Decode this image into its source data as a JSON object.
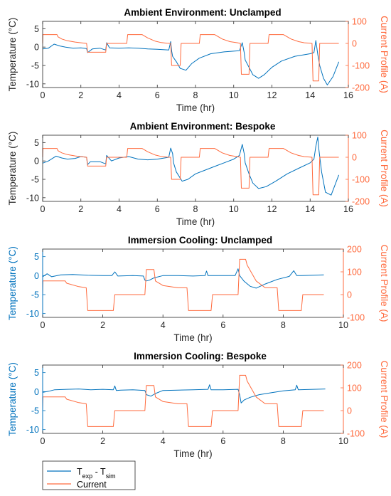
{
  "colors": {
    "temp": "#0072BD",
    "current": "#FF6A3D",
    "axis": "#262626",
    "box": "#262626"
  },
  "legend": {
    "entries": [
      {
        "label": "T_exp - T_sim",
        "color": "#0072BD"
      },
      {
        "label": "Current",
        "color": "#FF6A3D"
      }
    ]
  },
  "chart_data": [
    {
      "type": "line",
      "title": "Ambient Environment: Unclamped",
      "xlabel": "Time (hr)",
      "ylabel": "Temperature (°C)",
      "y2label": "Current Profile (A)",
      "xlim": [
        0,
        16
      ],
      "ylim": [
        -11,
        7
      ],
      "y2lim": [
        -200,
        100
      ],
      "xticks": [
        0,
        2,
        4,
        6,
        8,
        10,
        12,
        14,
        16
      ],
      "yticks": [
        -10,
        -5,
        0,
        5
      ],
      "y2ticks": [
        -200,
        -100,
        0,
        100
      ],
      "series": [
        {
          "axis": "left",
          "color": "#0072BD",
          "x": [
            0,
            0.3,
            0.6,
            0.9,
            1.2,
            1.6,
            2.0,
            2.3,
            2.35,
            2.6,
            3.0,
            3.3,
            3.35,
            3.5,
            4.0,
            4.5,
            5.0,
            5.5,
            6.0,
            6.6,
            6.7,
            6.75,
            6.8,
            7.0,
            7.2,
            7.5,
            7.8,
            8.2,
            8.8,
            9.5,
            10.3,
            10.45,
            10.55,
            10.6,
            10.8,
            11.0,
            11.3,
            11.6,
            12.0,
            12.5,
            13.2,
            14.0,
            14.2,
            14.3,
            14.4,
            14.5,
            14.7,
            14.9,
            15.2,
            15.5
          ],
          "y": [
            -0.5,
            -0.3,
            0.8,
            0.3,
            0,
            -0.3,
            -0.2,
            -0.4,
            -1.5,
            -0.5,
            -0.3,
            -0.8,
            1.2,
            -0.2,
            -0.3,
            -0.2,
            -0.3,
            -0.5,
            -0.6,
            -0.8,
            1.5,
            -1.0,
            -2.5,
            -4.0,
            -5.8,
            -6.3,
            -4.5,
            -3.0,
            -1.8,
            -1.3,
            -1.0,
            1.2,
            -1.5,
            -3.5,
            -5.5,
            -7.5,
            -8.5,
            -7.5,
            -5.5,
            -3.8,
            -2.5,
            -1.8,
            -1.5,
            1.8,
            -2.0,
            -5.0,
            -8.5,
            -10.3,
            -8.0,
            -4.0
          ]
        },
        {
          "axis": "right",
          "color": "#FF6A3D",
          "x": [
            0,
            0.01,
            0.75,
            0.8,
            1.0,
            1.3,
            1.7,
            2.0,
            2.3,
            2.35,
            3.3,
            3.35,
            3.6,
            4.4,
            4.45,
            5.2,
            5.5,
            5.9,
            6.2,
            6.5,
            6.7,
            6.75,
            7.2,
            7.25,
            7.5,
            8.2,
            8.25,
            9.0,
            9.4,
            9.8,
            10.2,
            10.35,
            10.4,
            10.8,
            10.85,
            11.2,
            11.8,
            11.85,
            12.6,
            13.0,
            13.4,
            13.7,
            14.0,
            14.1,
            14.15,
            14.45,
            14.5,
            15.5
          ],
          "y": [
            0,
            40,
            40,
            30,
            20,
            12,
            6,
            3,
            0,
            -40,
            -40,
            0,
            0,
            0,
            40,
            40,
            25,
            10,
            4,
            1,
            0,
            -100,
            -100,
            0,
            0,
            0,
            40,
            40,
            20,
            8,
            3,
            0,
            -140,
            -140,
            0,
            0,
            0,
            40,
            40,
            20,
            8,
            3,
            1,
            0,
            -170,
            -170,
            0,
            0
          ]
        }
      ]
    },
    {
      "type": "line",
      "title": "Ambient Environment: Bespoke",
      "xlabel": "Time (hr)",
      "ylabel": "Temperature (°C)",
      "y2label": "Current Profile (A)",
      "xlim": [
        0,
        16
      ],
      "ylim": [
        -11,
        7
      ],
      "y2lim": [
        -200,
        100
      ],
      "xticks": [
        0,
        2,
        4,
        6,
        8,
        10,
        12,
        14,
        16
      ],
      "yticks": [
        -10,
        -5,
        0,
        5
      ],
      "y2ticks": [
        -200,
        -100,
        0,
        100
      ],
      "series": [
        {
          "axis": "left",
          "color": "#0072BD",
          "x": [
            0,
            0.3,
            0.7,
            1.0,
            1.3,
            1.7,
            2.0,
            2.3,
            2.35,
            2.5,
            3.0,
            3.3,
            3.35,
            3.6,
            4.0,
            4.5,
            5.0,
            5.5,
            6.0,
            6.6,
            6.7,
            6.8,
            6.85,
            7.0,
            7.3,
            7.6,
            8.0,
            8.5,
            9.0,
            9.5,
            10.0,
            10.3,
            10.45,
            10.55,
            10.6,
            10.8,
            11.0,
            11.3,
            11.7,
            12.2,
            12.8,
            13.4,
            14.0,
            14.2,
            14.3,
            14.4,
            14.45,
            14.6,
            14.8,
            15.1,
            15.5
          ],
          "y": [
            -0.6,
            0,
            1.3,
            0.8,
            0.5,
            0.7,
            1.2,
            1.0,
            -1.0,
            -0.2,
            -0.2,
            -0.8,
            1.5,
            0,
            0.8,
            1.2,
            0.5,
            0.3,
            0.5,
            1.0,
            3.5,
            2.0,
            -0.5,
            -3.0,
            -5.5,
            -5.0,
            -3.5,
            -2.5,
            -1.5,
            -0.5,
            0.5,
            1.5,
            4.5,
            2.0,
            -0.5,
            -3.5,
            -6.0,
            -7.5,
            -7.0,
            -5.5,
            -3.5,
            -2.0,
            -0.5,
            0.5,
            4.0,
            6.5,
            3.5,
            -3.0,
            -8.5,
            -9.3,
            -3.8
          ]
        },
        {
          "axis": "right",
          "color": "#FF6A3D",
          "x": [
            0,
            0.01,
            0.75,
            0.8,
            1.0,
            1.3,
            1.7,
            2.0,
            2.3,
            2.35,
            3.3,
            3.35,
            3.6,
            4.4,
            4.45,
            5.2,
            5.5,
            5.9,
            6.2,
            6.5,
            6.7,
            6.75,
            7.2,
            7.25,
            7.5,
            8.2,
            8.25,
            9.0,
            9.4,
            9.8,
            10.2,
            10.35,
            10.4,
            10.8,
            10.85,
            11.2,
            11.8,
            11.85,
            12.6,
            13.0,
            13.4,
            13.7,
            14.0,
            14.1,
            14.15,
            14.45,
            14.5,
            15.5
          ],
          "y": [
            0,
            40,
            40,
            30,
            20,
            12,
            6,
            3,
            0,
            -40,
            -40,
            0,
            0,
            0,
            40,
            40,
            25,
            10,
            4,
            1,
            0,
            -100,
            -100,
            0,
            0,
            0,
            40,
            40,
            20,
            8,
            3,
            0,
            -140,
            -140,
            0,
            0,
            0,
            40,
            40,
            20,
            8,
            3,
            1,
            0,
            -170,
            -170,
            0,
            0
          ]
        }
      ]
    },
    {
      "type": "line",
      "title": "Immersion Cooling: Unclamped",
      "xlabel": "Time (hr)",
      "ylabel": "Temperature (°C)",
      "y2label": "Current Profile (A)",
      "xlim": [
        0,
        10
      ],
      "ylim": [
        -11,
        7
      ],
      "y2lim": [
        -100,
        200
      ],
      "xticks": [
        0,
        2,
        4,
        6,
        8,
        10
      ],
      "yticks": [
        -10,
        -5,
        0,
        5
      ],
      "y2ticks": [
        -100,
        0,
        100,
        200
      ],
      "series": [
        {
          "axis": "left",
          "color": "#0072BD",
          "x": [
            0,
            0.15,
            0.3,
            0.6,
            1.0,
            1.5,
            2.0,
            2.3,
            2.4,
            2.5,
            3.0,
            3.35,
            3.4,
            3.45,
            3.55,
            3.7,
            4.0,
            4.5,
            5.0,
            5.4,
            5.45,
            5.5,
            6.0,
            6.4,
            6.5,
            6.55,
            6.7,
            6.9,
            7.1,
            7.4,
            7.8,
            8.2,
            8.35,
            8.45,
            8.6,
            9.0,
            9.35
          ],
          "y": [
            -0.3,
            0.5,
            -0.3,
            0.2,
            0.3,
            0.1,
            0,
            0,
            1.0,
            -0.1,
            0,
            -0.1,
            -1.2,
            -1.4,
            -1.2,
            -0.6,
            0,
            0,
            -0.1,
            0,
            1.2,
            0,
            0,
            0,
            1.8,
            0,
            -1.5,
            -2.8,
            -3.3,
            -2.2,
            -1.0,
            -0.2,
            1.3,
            0,
            0,
            0.1,
            0.2
          ]
        },
        {
          "axis": "right",
          "color": "#FF6A3D",
          "x": [
            0,
            0.01,
            0.75,
            0.8,
            1.2,
            1.45,
            1.5,
            2.3,
            2.35,
            2.4,
            3.4,
            3.45,
            3.7,
            3.75,
            4.0,
            4.5,
            4.8,
            4.85,
            5.6,
            5.65,
            6.0,
            6.25,
            6.5,
            6.55,
            6.75,
            6.8,
            7.1,
            7.4,
            7.8,
            7.85,
            8.6,
            8.65,
            9.35
          ],
          "y": [
            0,
            60,
            60,
            50,
            35,
            30,
            -70,
            -70,
            -70,
            0,
            0,
            110,
            110,
            60,
            40,
            30,
            30,
            -70,
            -70,
            0,
            0,
            0,
            0,
            155,
            155,
            130,
            60,
            30,
            30,
            -70,
            -70,
            0,
            0
          ]
        }
      ]
    },
    {
      "type": "line",
      "title": "Immersion Cooling: Bespoke",
      "xlabel": "Time (hr)",
      "ylabel": "Temperature (°C)",
      "y2label": "Current Profile (A)",
      "xlim": [
        0,
        10
      ],
      "ylim": [
        -11,
        7
      ],
      "y2lim": [
        -100,
        200
      ],
      "xticks": [
        0,
        2,
        4,
        6,
        8,
        10
      ],
      "yticks": [
        -10,
        -5,
        0,
        5
      ],
      "y2ticks": [
        -100,
        0,
        100,
        200
      ],
      "series": [
        {
          "axis": "left",
          "color": "#0072BD",
          "x": [
            0,
            0.2,
            0.4,
            0.8,
            1.2,
            1.6,
            2.0,
            2.35,
            2.4,
            2.45,
            2.6,
            3.0,
            3.4,
            3.45,
            3.6,
            3.75,
            4.0,
            4.5,
            5.0,
            5.5,
            5.55,
            5.6,
            6.0,
            6.5,
            6.55,
            6.6,
            6.7,
            6.9,
            7.2,
            7.6,
            8.0,
            8.4,
            8.45,
            8.5,
            9.0,
            9.4
          ],
          "y": [
            -0.2,
            0.1,
            0.5,
            0.6,
            0.7,
            0.5,
            0.6,
            0.5,
            1.5,
            0.3,
            0.4,
            0.5,
            0.3,
            -0.8,
            -1.2,
            -0.5,
            0.3,
            0.4,
            0.5,
            0.6,
            1.8,
            0.5,
            0.5,
            0.6,
            -0.8,
            -3.0,
            -2.2,
            -1.5,
            -0.8,
            -0.3,
            0.2,
            0.5,
            1.7,
            0.5,
            0.6,
            0.7
          ]
        },
        {
          "axis": "right",
          "color": "#FF6A3D",
          "x": [
            0,
            0.01,
            0.75,
            0.8,
            1.2,
            1.45,
            1.5,
            2.3,
            2.35,
            2.4,
            3.4,
            3.45,
            3.7,
            3.75,
            4.0,
            4.5,
            4.8,
            4.85,
            5.6,
            5.65,
            6.0,
            6.25,
            6.5,
            6.55,
            6.75,
            6.8,
            7.1,
            7.4,
            7.8,
            7.85,
            8.6,
            8.65,
            9.35
          ],
          "y": [
            0,
            60,
            60,
            50,
            35,
            30,
            -70,
            -70,
            -70,
            0,
            0,
            110,
            110,
            60,
            40,
            30,
            30,
            -70,
            -70,
            0,
            0,
            0,
            0,
            155,
            155,
            130,
            60,
            30,
            30,
            -70,
            -70,
            0,
            0
          ]
        }
      ]
    }
  ]
}
